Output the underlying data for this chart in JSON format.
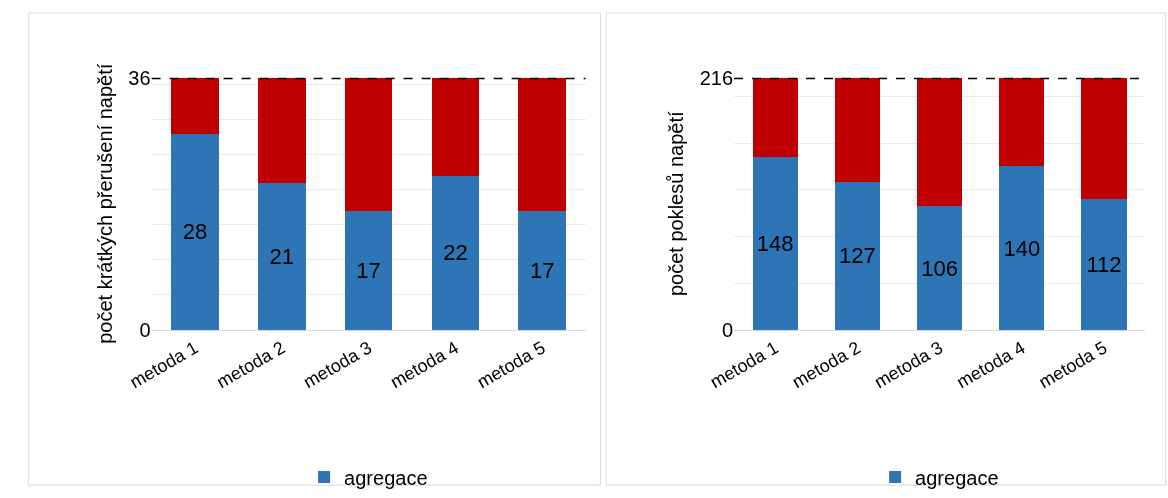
{
  "chart_data": [
    {
      "type": "bar",
      "stacked": true,
      "ylabel": "počet krátkých přerušení napětí",
      "categories": [
        "metoda 1",
        "metoda 2",
        "metoda 3",
        "metoda 4",
        "metoda 5"
      ],
      "series": [
        {
          "name": "agregace",
          "color": "#2e75b6",
          "values": [
            28,
            21,
            17,
            22,
            17
          ],
          "value_labels": [
            "28",
            "21",
            "17",
            "22",
            "17"
          ]
        },
        {
          "color": "#c00000",
          "values": [
            8,
            15,
            19,
            14,
            19
          ]
        }
      ],
      "ylim": [
        0,
        36
      ],
      "yticks": [
        0,
        {
          "value": 5,
          "label": null
        },
        {
          "value": 10,
          "label": null
        },
        {
          "value": 15,
          "label": null
        },
        {
          "value": 20,
          "label": null
        },
        {
          "value": 25,
          "label": null
        },
        {
          "value": 30,
          "label": null
        },
        {
          "value": 35,
          "label": null
        },
        36
      ],
      "grid": "y",
      "legend": "bottom",
      "ref_lines": [
        {
          "axis": "y",
          "value": 36,
          "color": "#000000",
          "line_style": "dashed"
        }
      ]
    },
    {
      "type": "bar",
      "stacked": true,
      "ylabel": "počet poklesů napětí",
      "categories": [
        "metoda 1",
        "metoda 2",
        "metoda 3",
        "metoda 4",
        "metoda 5"
      ],
      "series": [
        {
          "name": "agregace",
          "color": "#2e75b6",
          "values": [
            148,
            127,
            106,
            140,
            112
          ],
          "value_labels": [
            "148",
            "127",
            "106",
            "140",
            "112"
          ]
        },
        {
          "color": "#c00000",
          "values": [
            68,
            89,
            110,
            76,
            104
          ]
        }
      ],
      "ylim": [
        0,
        216
      ],
      "yticks": [
        0,
        {
          "value": 40,
          "label": null
        },
        {
          "value": 80,
          "label": null
        },
        {
          "value": 120,
          "label": null
        },
        {
          "value": 160,
          "label": null
        },
        {
          "value": 200,
          "label": null
        },
        216
      ],
      "grid": "y",
      "legend": "bottom",
      "ref_lines": [
        {
          "axis": "y",
          "value": 216,
          "color": "#000000",
          "line_style": "dashed"
        }
      ]
    }
  ]
}
